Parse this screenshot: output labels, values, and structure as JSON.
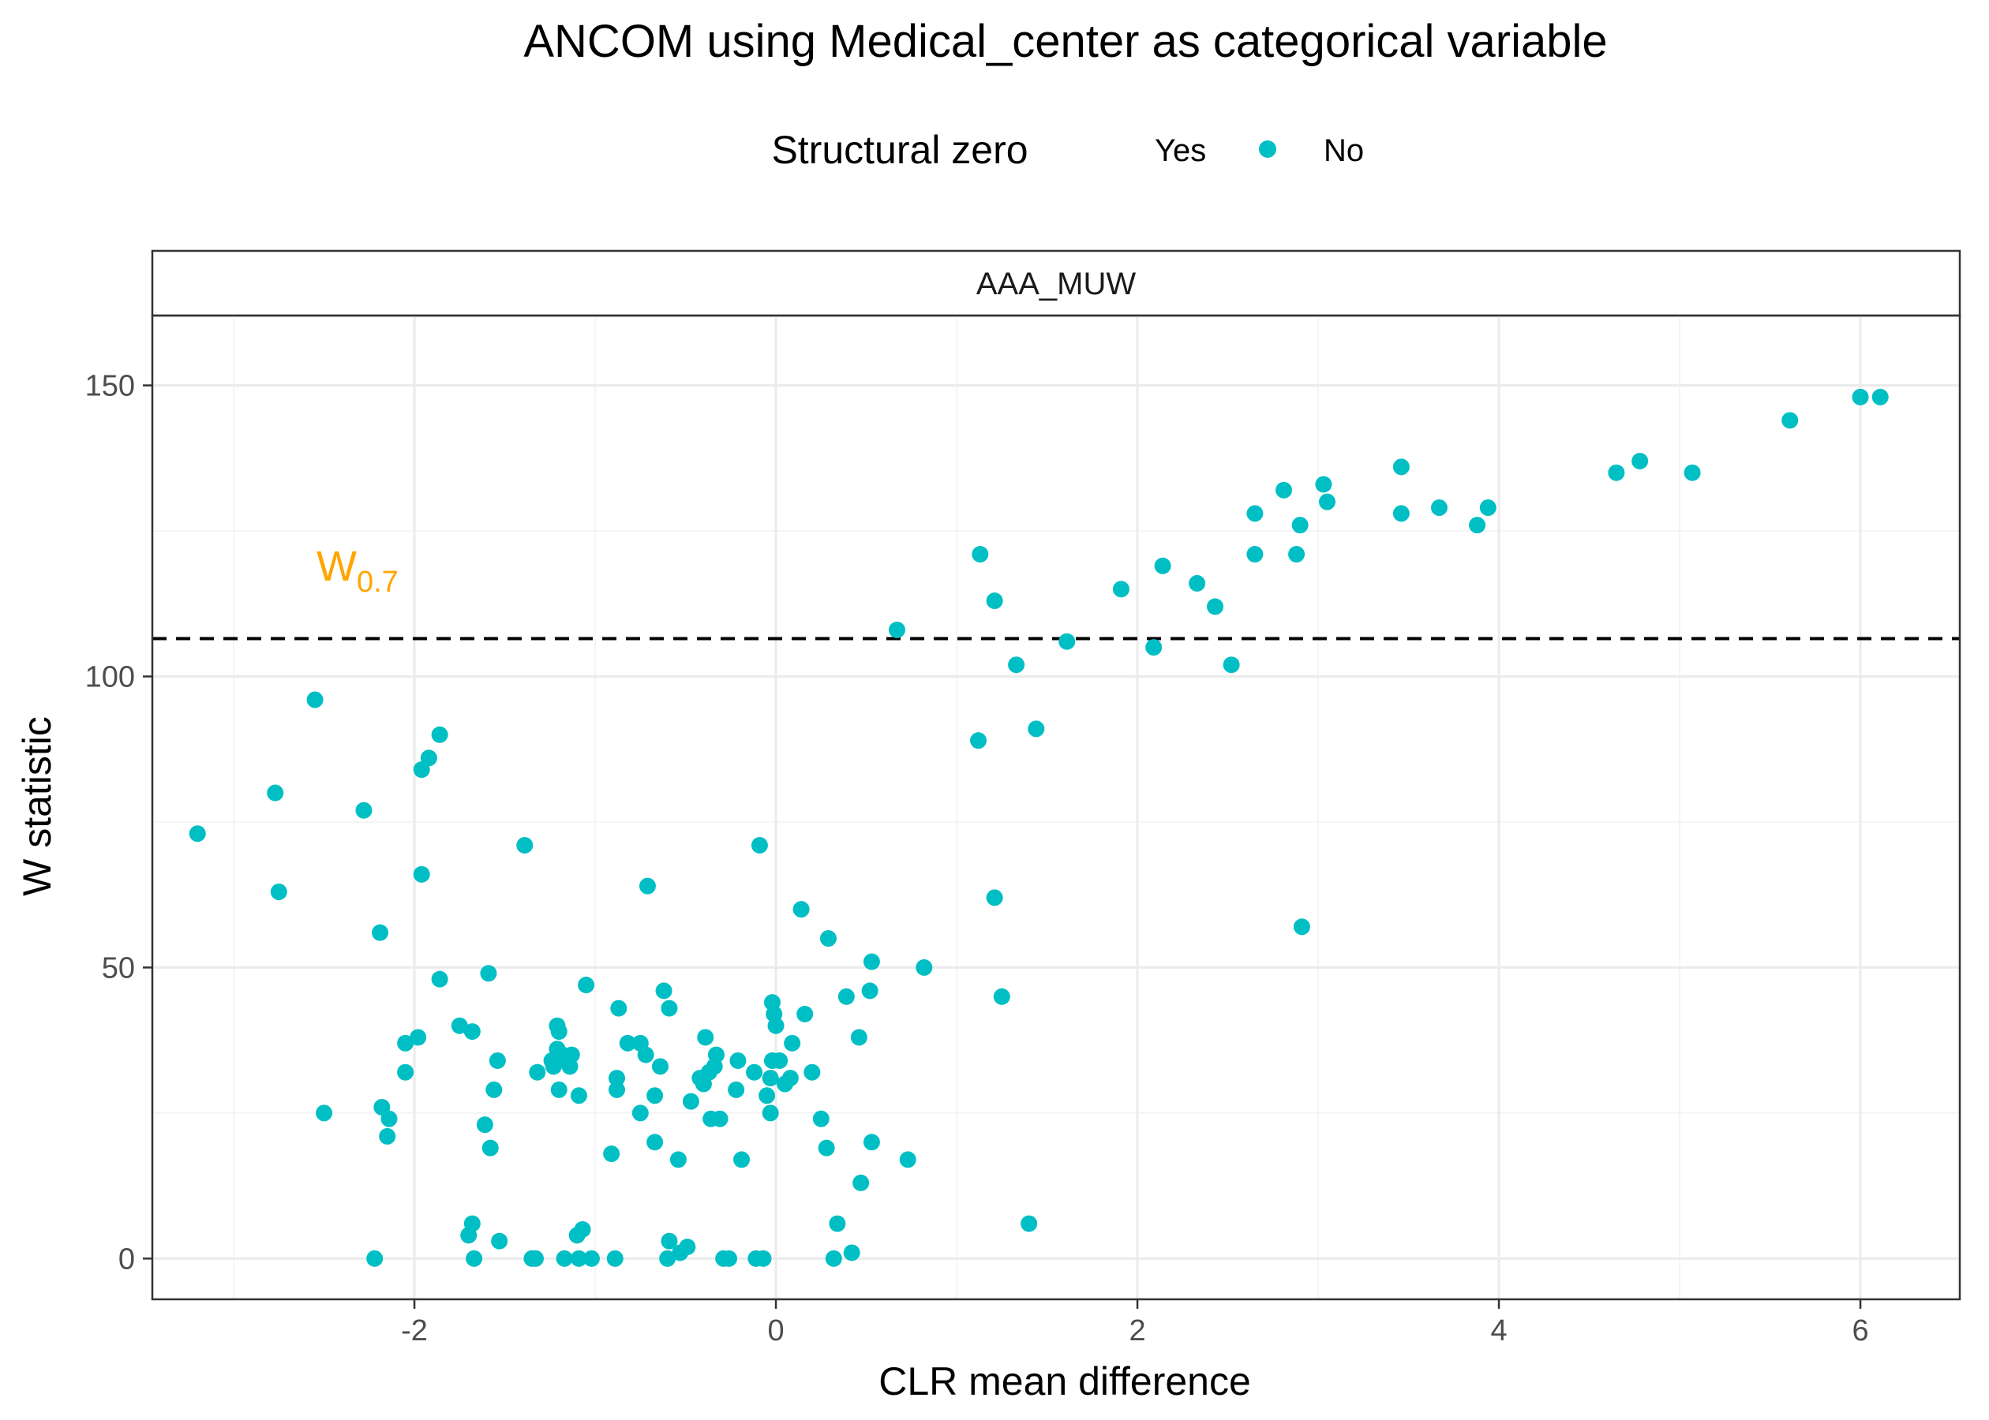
{
  "chart_data": {
    "type": "scatter",
    "title": "ANCOM using Medical_center as categorical variable",
    "xlabel": "CLR mean difference",
    "ylabel": "W statistic",
    "facet_label": "AAA_MUW",
    "legend": {
      "title": "Structural zero",
      "position": "top",
      "entries": [
        {
          "label": "Yes",
          "color": "#F8766D",
          "shown_marker": false
        },
        {
          "label": "No",
          "color": "#00BFC4",
          "shown_marker": true
        }
      ]
    },
    "threshold": {
      "label_main": "W",
      "label_sub": "0.7",
      "y": 106.5,
      "color": "#FFA500",
      "style": "dashed"
    },
    "xlim": [
      -3.45,
      6.55
    ],
    "ylim": [
      -7,
      162
    ],
    "x_ticks": [
      -2,
      0,
      2,
      4,
      6
    ],
    "x_tick_labels": [
      "-2",
      "0",
      "2",
      "4",
      "6"
    ],
    "y_ticks": [
      0,
      50,
      100,
      150
    ],
    "y_tick_labels": [
      "0",
      "50",
      "100",
      "150"
    ],
    "grid": true,
    "series": [
      {
        "name": "No",
        "color": "#00BFC4",
        "points": [
          [
            6.11,
            148
          ],
          [
            6.0,
            148
          ],
          [
            5.61,
            144
          ],
          [
            4.78,
            137
          ],
          [
            4.65,
            135
          ],
          [
            5.07,
            135
          ],
          [
            3.46,
            136
          ],
          [
            3.03,
            133
          ],
          [
            2.81,
            132
          ],
          [
            3.05,
            130
          ],
          [
            3.67,
            129
          ],
          [
            3.94,
            129
          ],
          [
            2.65,
            128
          ],
          [
            3.46,
            128
          ],
          [
            2.9,
            126
          ],
          [
            3.88,
            126
          ],
          [
            1.13,
            121
          ],
          [
            2.65,
            121
          ],
          [
            2.88,
            121
          ],
          [
            2.14,
            119
          ],
          [
            2.33,
            116
          ],
          [
            1.91,
            115
          ],
          [
            1.21,
            113
          ],
          [
            2.43,
            112
          ],
          [
            0.67,
            108
          ],
          [
            1.61,
            106
          ],
          [
            2.09,
            105
          ],
          [
            1.33,
            102
          ],
          [
            2.52,
            102
          ],
          [
            -2.55,
            96
          ],
          [
            1.44,
            91
          ],
          [
            -1.86,
            90
          ],
          [
            1.12,
            89
          ],
          [
            -1.92,
            86
          ],
          [
            -1.96,
            84
          ],
          [
            -2.77,
            80
          ],
          [
            -2.28,
            77
          ],
          [
            -3.2,
            73
          ],
          [
            -1.39,
            71
          ],
          [
            -0.09,
            71
          ],
          [
            -1.96,
            66
          ],
          [
            -0.71,
            64
          ],
          [
            -2.75,
            63
          ],
          [
            1.21,
            62
          ],
          [
            0.14,
            60
          ],
          [
            2.91,
            57
          ],
          [
            -2.19,
            56
          ],
          [
            0.29,
            55
          ],
          [
            0.53,
            51
          ],
          [
            0.82,
            50
          ],
          [
            -1.59,
            49
          ],
          [
            -1.86,
            48
          ],
          [
            -1.05,
            47
          ],
          [
            -0.62,
            46
          ],
          [
            0.52,
            46
          ],
          [
            0.39,
            45
          ],
          [
            1.25,
            45
          ],
          [
            -0.02,
            44
          ],
          [
            -0.87,
            43
          ],
          [
            -0.59,
            43
          ],
          [
            -0.01,
            42
          ],
          [
            0.16,
            42
          ],
          [
            -1.21,
            40
          ],
          [
            -1.75,
            40
          ],
          [
            0.0,
            40
          ],
          [
            -1.2,
            39
          ],
          [
            -1.68,
            39
          ],
          [
            -1.98,
            38
          ],
          [
            -0.39,
            38
          ],
          [
            0.46,
            38
          ],
          [
            -2.05,
            37
          ],
          [
            -0.82,
            37
          ],
          [
            -0.75,
            37
          ],
          [
            0.09,
            37
          ],
          [
            -1.21,
            36
          ],
          [
            -0.72,
            35
          ],
          [
            -1.18,
            35
          ],
          [
            -1.13,
            35
          ],
          [
            -0.33,
            35
          ],
          [
            -1.24,
            34
          ],
          [
            -1.15,
            34
          ],
          [
            -1.54,
            34
          ],
          [
            -0.21,
            34
          ],
          [
            -0.02,
            34
          ],
          [
            0.02,
            34
          ],
          [
            -1.23,
            33
          ],
          [
            -1.14,
            33
          ],
          [
            -0.64,
            33
          ],
          [
            -0.34,
            33
          ],
          [
            -2.05,
            32
          ],
          [
            -1.32,
            32
          ],
          [
            -0.37,
            32
          ],
          [
            -0.12,
            32
          ],
          [
            0.2,
            32
          ],
          [
            -0.42,
            31
          ],
          [
            -0.88,
            31
          ],
          [
            -0.03,
            31
          ],
          [
            0.08,
            31
          ],
          [
            -0.4,
            30
          ],
          [
            0.05,
            30
          ],
          [
            -1.2,
            29
          ],
          [
            -1.56,
            29
          ],
          [
            -0.88,
            29
          ],
          [
            -0.22,
            29
          ],
          [
            -1.09,
            28
          ],
          [
            -0.67,
            28
          ],
          [
            -0.05,
            28
          ],
          [
            -0.47,
            27
          ],
          [
            -2.18,
            26
          ],
          [
            -2.5,
            25
          ],
          [
            -0.75,
            25
          ],
          [
            -0.03,
            25
          ],
          [
            -2.14,
            24
          ],
          [
            -0.36,
            24
          ],
          [
            -0.31,
            24
          ],
          [
            0.25,
            24
          ],
          [
            -1.61,
            23
          ],
          [
            -2.15,
            21
          ],
          [
            -0.67,
            20
          ],
          [
            0.53,
            20
          ],
          [
            -1.58,
            19
          ],
          [
            0.28,
            19
          ],
          [
            -0.91,
            18
          ],
          [
            -0.54,
            17
          ],
          [
            -0.19,
            17
          ],
          [
            0.73,
            17
          ],
          [
            0.47,
            13
          ],
          [
            -1.68,
            6
          ],
          [
            0.34,
            6
          ],
          [
            1.4,
            6
          ],
          [
            -1.07,
            5
          ],
          [
            -1.7,
            4
          ],
          [
            -1.1,
            4
          ],
          [
            -1.53,
            3
          ],
          [
            -0.59,
            3
          ],
          [
            -0.49,
            2
          ],
          [
            0.42,
            1
          ],
          [
            -0.53,
            1
          ],
          [
            -2.22,
            0
          ],
          [
            -1.67,
            0
          ],
          [
            -1.35,
            0
          ],
          [
            -1.33,
            0
          ],
          [
            -1.17,
            0
          ],
          [
            -1.09,
            0
          ],
          [
            -1.02,
            0
          ],
          [
            -0.89,
            0
          ],
          [
            -0.6,
            0
          ],
          [
            -0.29,
            0
          ],
          [
            -0.26,
            0
          ],
          [
            -0.11,
            0
          ],
          [
            -0.07,
            0
          ],
          [
            0.32,
            0
          ]
        ]
      }
    ]
  }
}
